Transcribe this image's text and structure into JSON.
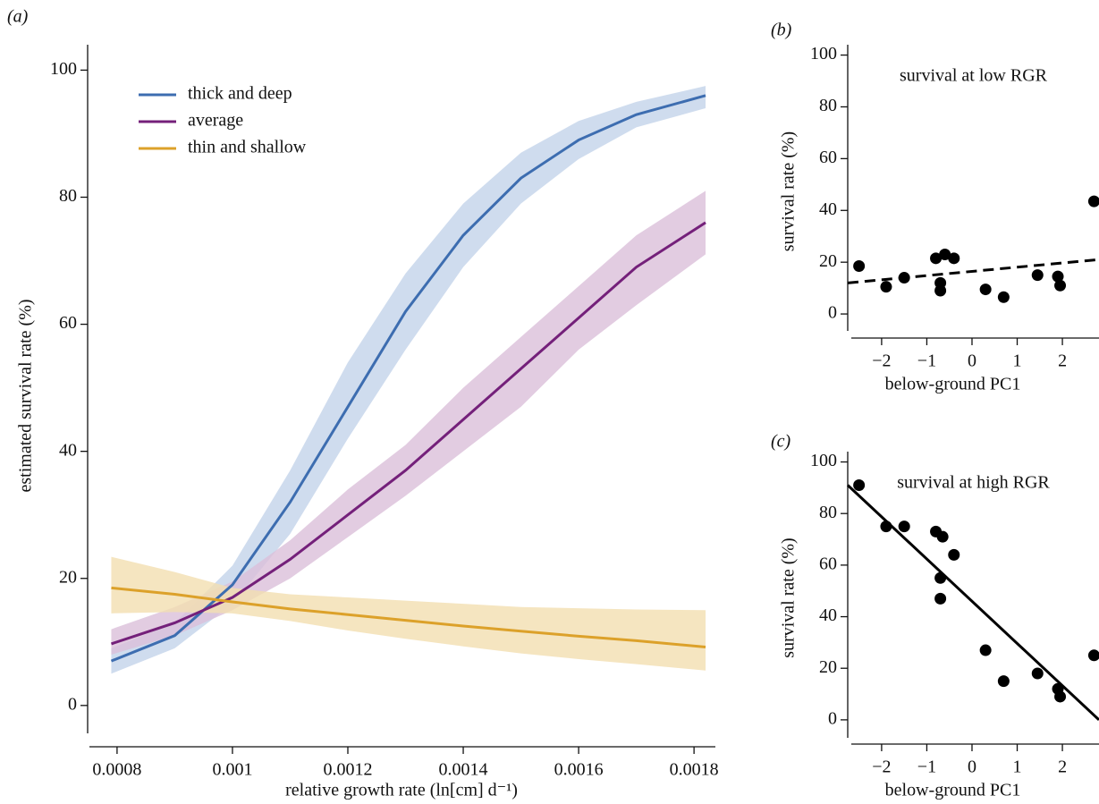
{
  "chart_data": [
    {
      "type": "band-line",
      "panel_label": "(a)",
      "x_label": "relative growth rate (ln[cm] d⁻¹)",
      "y_label": "estimated survival rate (%)",
      "x": [
        0.00079,
        0.0009,
        0.001,
        0.0011,
        0.0012,
        0.0013,
        0.0014,
        0.0015,
        0.0016,
        0.0017,
        0.00182
      ],
      "series": [
        {
          "name": "thick and deep",
          "color": "#3d6db0",
          "band_color": "#c3d3ea",
          "values": [
            7,
            11,
            19,
            32,
            47,
            62,
            74,
            83,
            89,
            93,
            96
          ],
          "lower": [
            5,
            9,
            16,
            27,
            42,
            56,
            69,
            79,
            86,
            91,
            94
          ],
          "upper": [
            9,
            13,
            22,
            37,
            54,
            68,
            79,
            87,
            92,
            95,
            97.5
          ]
        },
        {
          "name": "average",
          "color": "#74207a",
          "band_color": "#dbbfd9",
          "values": [
            9.7,
            13,
            17,
            23,
            30,
            37,
            45,
            53,
            61,
            69,
            76
          ],
          "lower": [
            8,
            11,
            15,
            20,
            26.5,
            33,
            40,
            47,
            56,
            63,
            71
          ],
          "upper": [
            12,
            15.5,
            19.5,
            26,
            34,
            41,
            50,
            58,
            66,
            74,
            81
          ]
        },
        {
          "name": "thin and shallow",
          "color": "#dca12a",
          "band_color": "#f3dfb0",
          "values": [
            18.5,
            17.5,
            16.3,
            15.2,
            14.3,
            13.4,
            12.5,
            11.7,
            10.9,
            10.2,
            9.2
          ],
          "lower": [
            14.5,
            14.7,
            14.5,
            13.3,
            11.8,
            10.5,
            9.3,
            8.2,
            7.3,
            6.5,
            5.5
          ],
          "upper": [
            23.4,
            21,
            18.5,
            17.5,
            17,
            16.5,
            16,
            15.5,
            15.3,
            15.1,
            15
          ]
        }
      ],
      "xlim": [
        0.000749,
        0.001837
      ],
      "ylim": [
        -6.5,
        104
      ],
      "xticks": [
        0.0008,
        0.001,
        0.0012,
        0.0014,
        0.0016,
        0.0018
      ],
      "yticks": [
        0,
        20,
        40,
        60,
        80,
        100
      ],
      "legend": "upper left"
    },
    {
      "type": "scatter",
      "panel_label": "(b)",
      "title": "survival at low RGR",
      "x_label": "below-ground PC1",
      "y_label": "survival rate (%)",
      "color": "#000000",
      "x": [
        -2.5,
        -1.9,
        -1.5,
        -0.8,
        -0.7,
        -0.7,
        -0.6,
        -0.4,
        0.3,
        0.7,
        1.45,
        1.9,
        1.95,
        2.7
      ],
      "values": [
        18.5,
        10.5,
        14,
        21.5,
        12,
        9,
        23,
        21.5,
        9.5,
        6.5,
        15,
        14.5,
        11,
        43.5
      ],
      "fit": {
        "x": [
          -2.75,
          2.81
        ],
        "values": [
          12,
          21
        ],
        "style": "dashed"
      },
      "xlim": [
        -2.75,
        2.81
      ],
      "ylim": [
        -9.3,
        104
      ],
      "xticks": [
        {
          "value": -2,
          "label": "−2"
        },
        {
          "value": -1,
          "label": "−1"
        },
        0,
        1,
        2
      ],
      "yticks": [
        0,
        20,
        40,
        60,
        80,
        100
      ]
    },
    {
      "type": "scatter",
      "panel_label": "(c)",
      "title": "survival at high RGR",
      "x_label": "below-ground PC1",
      "y_label": "survival rate (%)",
      "color": "#000000",
      "x": [
        -2.5,
        -1.9,
        -1.5,
        -0.8,
        -0.65,
        -0.7,
        -0.7,
        -0.4,
        0.3,
        0.7,
        1.45,
        1.9,
        1.95,
        2.7
      ],
      "values": [
        91,
        75,
        75,
        73,
        71,
        55,
        47,
        64,
        27,
        15,
        18,
        12,
        9,
        25
      ],
      "fit": {
        "x": [
          -2.75,
          2.81
        ],
        "values": [
          91,
          0
        ],
        "style": "solid"
      },
      "xlim": [
        -2.75,
        2.81
      ],
      "ylim": [
        -9.4,
        104
      ],
      "xticks": [
        {
          "value": -2,
          "label": "−2"
        },
        {
          "value": -1,
          "label": "−1"
        },
        0,
        1,
        2
      ],
      "yticks": [
        0,
        20,
        40,
        60,
        80,
        100
      ]
    }
  ]
}
